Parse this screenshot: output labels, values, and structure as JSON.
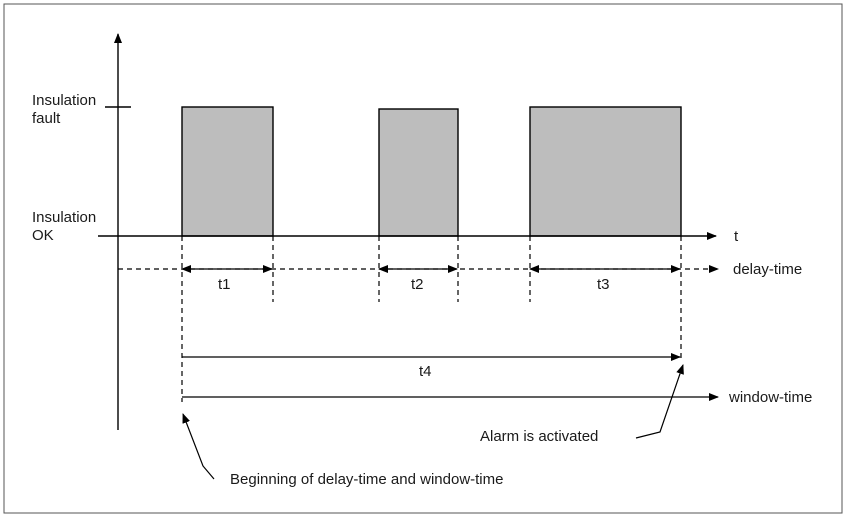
{
  "diagram": {
    "y_levels": {
      "fault": [
        "Insulation",
        "fault"
      ],
      "ok": [
        "Insulation",
        "OK"
      ]
    },
    "time_axis_label": "t",
    "delay_time_label": "delay-time",
    "window_time_label": "window-time",
    "intervals": {
      "t1": "t1",
      "t2": "t2",
      "t3": "t3",
      "t4": "t4"
    },
    "annotations": {
      "alarm": "Alarm is activated",
      "beginning": "Beginning of delay-time and window-time"
    },
    "colors": {
      "pulse_fill": "#bdbdbd",
      "line": "#000000",
      "frame": "#555555"
    }
  }
}
